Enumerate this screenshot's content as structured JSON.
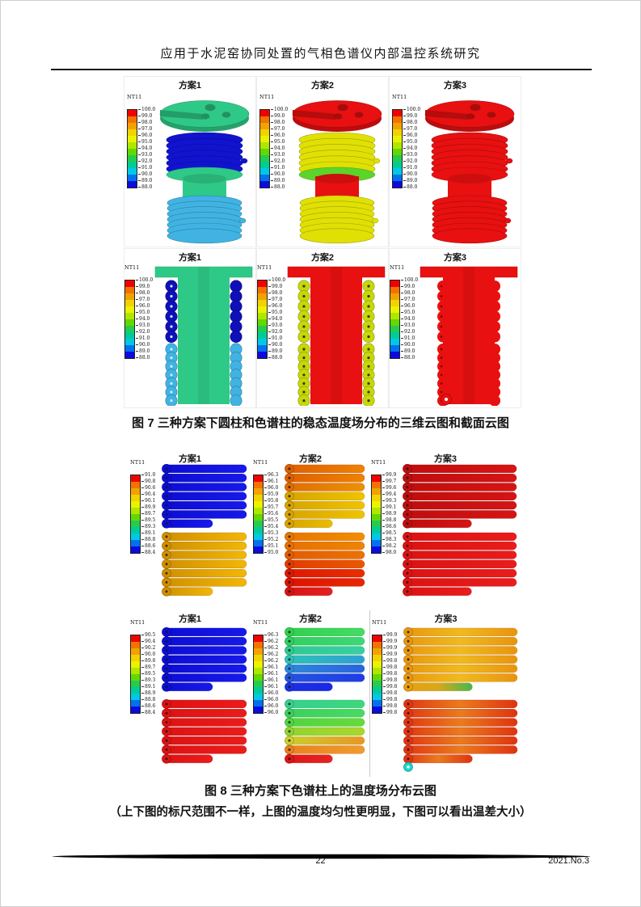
{
  "header": {
    "title": "应用于水泥窑协同处置的气相色谱仪内部温控系统研究"
  },
  "footer": {
    "page_number": "22",
    "issue": "2021.No.3"
  },
  "legend": {
    "title": "NT11",
    "colors": [
      "#f20000",
      "#f27300",
      "#f2a200",
      "#f2d200",
      "#eaf200",
      "#b0e600",
      "#62d900",
      "#26cc4e",
      "#00cc96",
      "#00c8e6",
      "#0072ee",
      "#0b0bdf"
    ]
  },
  "figure7": {
    "caption": "图 7  三种方案下圆柱和色谱柱的稳态温度场分布的三维云图和截面云图",
    "legend_values": [
      "100.0",
      "99.0",
      "98.0",
      "97.0",
      "96.0",
      "95.0",
      "94.0",
      "93.0",
      "92.0",
      "91.0",
      "90.0",
      "89.0",
      "88.0"
    ],
    "row3d": [
      {
        "label": "方案1",
        "top_disk": "#2fc987",
        "upper_coil": "#1113cf",
        "mid_band": "#2fc987",
        "mid_core": "#2fc987",
        "lower_coil": "#40b3e3"
      },
      {
        "label": "方案2",
        "top_disk": "#e81010",
        "upper_coil": "#e0e005",
        "mid_band": "#5cd42a",
        "mid_core": "#e81010",
        "lower_coil": "#e0e005"
      },
      {
        "label": "方案3",
        "top_disk": "#e81010",
        "upper_coil": "#e81010",
        "mid_band": "#e81010",
        "mid_core": "#e81010",
        "lower_coil": "#e81010"
      }
    ],
    "rowsection": [
      {
        "label": "方案1",
        "body": "#2fc987",
        "upper_tubes": "#0f10b8",
        "lower_tubes": "#40b3e3",
        "dot": "#c9ecfa",
        "dot_both": false,
        "bumpy": false,
        "flange_patch": false
      },
      {
        "label": "方案2",
        "body": "#e81010",
        "upper_tubes": "#c6d80c",
        "lower_tubes": "#c6d80c",
        "dot": "#3a3a00",
        "dot_both": true,
        "bumpy": false,
        "flange_patch": true
      },
      {
        "label": "方案3",
        "body": "#e81010",
        "upper_tubes": "#e81010",
        "lower_tubes": "#e81010",
        "dot": "#6b0000",
        "dot_both": false,
        "bumpy": true,
        "flange_patch": true
      }
    ]
  },
  "figure8": {
    "caption": "图 8  三种方案下色谱柱上的温度场分布云图",
    "note": "（上下图的标尺范围不一样，上图的温度均匀性更明显，下图可以看出温差大小）",
    "rows": [
      [
        {
          "label": "方案1",
          "legend_values": [
            "91.0",
            "90.8",
            "90.6",
            "90.4",
            "90.1",
            "89.9",
            "89.7",
            "89.5",
            "89.3",
            "89.1",
            "88.8",
            "88.6",
            "88.4"
          ],
          "top_tubes": [
            [
              "#0c0dd2",
              "#1719ea"
            ],
            [
              "#0c0dd2",
              "#1719ea"
            ],
            [
              "#0c0dd2",
              "#1719ea"
            ],
            [
              "#0c0dd2",
              "#1719ea"
            ],
            [
              "#0c0dd2",
              "#1719ea"
            ],
            [
              "#0c0dd2",
              "#1719ea"
            ],
            [
              "#0c0dd2",
              "#1719ea"
            ]
          ],
          "bottom_tubes": [
            [
              "#cf8f00",
              "#f2b705"
            ],
            [
              "#cf8f00",
              "#f2b705"
            ],
            [
              "#cf8f00",
              "#f2b705"
            ],
            [
              "#cf8f00",
              "#f2b705"
            ],
            [
              "#cf8f00",
              "#f2b705"
            ],
            [
              "#cf8f00",
              "#f2b705"
            ],
            [
              "#cf8f00",
              "#f2b705"
            ]
          ]
        },
        {
          "label": "方案2",
          "legend_values": [
            "96.3",
            "96.1",
            "96.0",
            "95.9",
            "95.8",
            "95.7",
            "95.6",
            "95.5",
            "95.4",
            "95.3",
            "95.2",
            "95.1",
            "95.0"
          ],
          "top_tubes": [
            [
              "#de5f00",
              "#ef8200"
            ],
            [
              "#de5f00",
              "#ef8200"
            ],
            [
              "#e16c00",
              "#eb9200"
            ],
            [
              "#d7a300",
              "#eec400"
            ],
            [
              "#d7a300",
              "#eec400"
            ],
            [
              "#d7a300",
              "#eec400"
            ],
            [
              "#d7a300",
              "#e9bd00"
            ]
          ],
          "bottom_tubes": [
            [
              "#e87500",
              "#f08e00"
            ],
            [
              "#e87000",
              "#ee8400"
            ],
            [
              "#e55c00",
              "#ec7200"
            ],
            [
              "#e23c00",
              "#e95800"
            ],
            [
              "#de1800",
              "#e92d00"
            ],
            [
              "#dc1400",
              "#e82600"
            ],
            [
              "#d81212",
              "#e42020"
            ]
          ]
        },
        {
          "label": "方案3",
          "legend_values": [
            "99.9",
            "99.7",
            "99.6",
            "99.4",
            "99.3",
            "99.1",
            "98.9",
            "98.8",
            "98.6",
            "98.5",
            "98.3",
            "98.2",
            "98.0"
          ],
          "top_tubes": [
            [
              "#bf0d0d",
              "#d61414"
            ],
            [
              "#bf0d0d",
              "#d61414"
            ],
            [
              "#bf0d0d",
              "#d61414"
            ],
            [
              "#bf0d0d",
              "#d61414"
            ],
            [
              "#bf0d0d",
              "#d61414"
            ],
            [
              "#bf0d0d",
              "#d61414"
            ],
            [
              "#bf0d0d",
              "#d61414"
            ]
          ],
          "bottom_tubes": [
            [
              "#dc1212",
              "#ea1c1c"
            ],
            [
              "#dc1212",
              "#ea1c1c"
            ],
            [
              "#dc1212",
              "#ea1c1c"
            ],
            [
              "#dc1212",
              "#ea1c1c"
            ],
            [
              "#dc1212",
              "#ea1c1c"
            ],
            [
              "#dc1212",
              "#ea1c1c"
            ],
            [
              "#dc1212",
              "#ea1c1c"
            ]
          ]
        }
      ],
      [
        {
          "label": "方案1",
          "legend_values": [
            "90.5",
            "90.4",
            "90.2",
            "90.0",
            "89.8",
            "89.7",
            "89.5",
            "89.3",
            "89.1",
            "88.9",
            "88.8",
            "88.6",
            "88.4"
          ],
          "top_tubes": [
            [
              "#0c0dd2",
              "#1719ea"
            ],
            [
              "#0c0dd2",
              "#1719ea"
            ],
            [
              "#0c0dd2",
              "#1719ea"
            ],
            [
              "#0c0dd2",
              "#1719ea"
            ],
            [
              "#0c0dd2",
              "#1719ea"
            ],
            [
              "#0c0dd2",
              "#1719ea"
            ],
            [
              "#0c0dd2",
              "#1719ea"
            ]
          ],
          "bottom_tubes": [
            [
              "#dc1212",
              "#ea1c1c"
            ],
            [
              "#dc1212",
              "#ea1c1c"
            ],
            [
              "#dc1212",
              "#ea1c1c"
            ],
            [
              "#dc1212",
              "#ea1c1c"
            ],
            [
              "#dc1212",
              "#ea1c1c"
            ],
            [
              "#dc1212",
              "#ea1c1c"
            ],
            [
              "#dc1212",
              "#ea1c1c"
            ]
          ]
        },
        {
          "label": "方案2",
          "legend_values": [
            "96.3",
            "96.2",
            "96.2",
            "96.2",
            "96.2",
            "96.1",
            "96.1",
            "96.1",
            "96.1",
            "96.0",
            "96.0",
            "96.0",
            "96.0"
          ],
          "top_tubes": [
            [
              "#2fd04d",
              "#46db66"
            ],
            [
              "#2fd05e",
              "#3dd876"
            ],
            [
              "#2fca90",
              "#36d0a2"
            ],
            [
              "#2fc2b6",
              "#2f9fd4"
            ],
            [
              "#2e89da",
              "#2a62de"
            ],
            [
              "#2554e0",
              "#1f3ce4"
            ],
            [
              "#1c30e2",
              "#1828e6"
            ]
          ],
          "bottom_tubes": [
            [
              "#36d090",
              "#3ed77a"
            ],
            [
              "#3ad15a",
              "#47da64"
            ],
            [
              "#51d443",
              "#66da3b"
            ],
            [
              "#90d42f",
              "#acd62c"
            ],
            [
              "#cbd12b",
              "#ea9426"
            ],
            [
              "#e9801e",
              "#f09c2c"
            ],
            [
              "#dd1515",
              "#e62424"
            ]
          ]
        },
        {
          "label": "方案3",
          "legend_values": [
            "99.9",
            "99.9",
            "99.9",
            "99.9",
            "99.8",
            "99.8",
            "99.8",
            "99.8",
            "99.8",
            "99.8",
            "99.8",
            "99.8",
            "99.8"
          ],
          "top_tubes": [
            [
              "#e8970f",
              "#f0ba1e",
              "#e8930f"
            ],
            [
              "#e8970f",
              "#f0ba1e",
              "#e8930f"
            ],
            [
              "#e8970f",
              "#f0ba1e",
              "#e8930f"
            ],
            [
              "#e8970f",
              "#f0ba1e",
              "#e8930f"
            ],
            [
              "#e8970f",
              "#f0ba1e",
              "#e8930f"
            ],
            [
              "#e8970f",
              "#f0ba1e",
              "#e8930f"
            ],
            [
              "#e89f0f",
              "#d8a81a",
              "#43b84f"
            ]
          ],
          "bottom_tubes": [
            [
              "#e03611",
              "#ea7b1c",
              "#df3310"
            ],
            [
              "#e03611",
              "#ea7b1c",
              "#df3310"
            ],
            [
              "#e03611",
              "#ea7b1c",
              "#df3310"
            ],
            [
              "#e03611",
              "#ea7b1c",
              "#df3310"
            ],
            [
              "#e03611",
              "#ea7b1c",
              "#df3310"
            ],
            [
              "#e03611",
              "#ea7b1c",
              "#df3310"
            ],
            [
              "#e03611",
              "#ea7b1c",
              "#df3310"
            ]
          ],
          "extra_dot": "#19d8c8"
        }
      ]
    ]
  }
}
